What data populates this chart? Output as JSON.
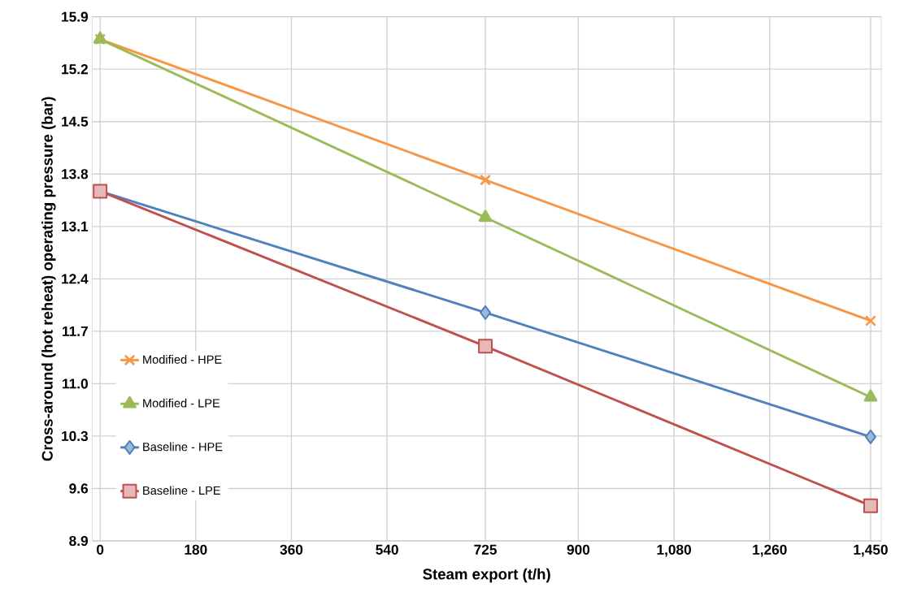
{
  "chart_data": {
    "type": "line",
    "xlabel": "Steam export (t/h)",
    "ylabel": "Cross-around (hot reheat) operating pressure (bar)",
    "x": [
      0,
      725,
      1450
    ],
    "series": [
      {
        "name": "Modified - HPE",
        "color": "#f79646",
        "marker": "cross",
        "values": [
          15.6,
          13.72,
          11.84
        ]
      },
      {
        "name": "Modified - LPE",
        "color": "#9bbb59",
        "marker": "triangle",
        "values": [
          15.6,
          13.22,
          10.82
        ]
      },
      {
        "name": "Baseline - HPE",
        "color": "#4f81bd",
        "marker": "diamond",
        "values": [
          13.57,
          11.95,
          10.29
        ]
      },
      {
        "name": "Baseline - LPE",
        "color": "#c0504d",
        "marker": "square",
        "values": [
          13.57,
          11.5,
          9.37
        ]
      }
    ],
    "xlim": [
      -15,
      1470
    ],
    "ylim": [
      8.9,
      15.9
    ],
    "xticks": [
      0,
      180,
      360,
      540,
      725,
      900,
      {
        "value": 1080,
        "label": "1,080"
      },
      {
        "value": 1260,
        "label": "1,260"
      },
      {
        "value": 1450,
        "label": "1,450"
      }
    ],
    "yticks": [
      8.9,
      9.6,
      10.3,
      {
        "value": 11.0,
        "label": "11.0"
      },
      11.7,
      12.4,
      13.1,
      13.8,
      14.5,
      15.2,
      15.9
    ],
    "grid": true,
    "legend": "left",
    "line_style": "solid"
  }
}
